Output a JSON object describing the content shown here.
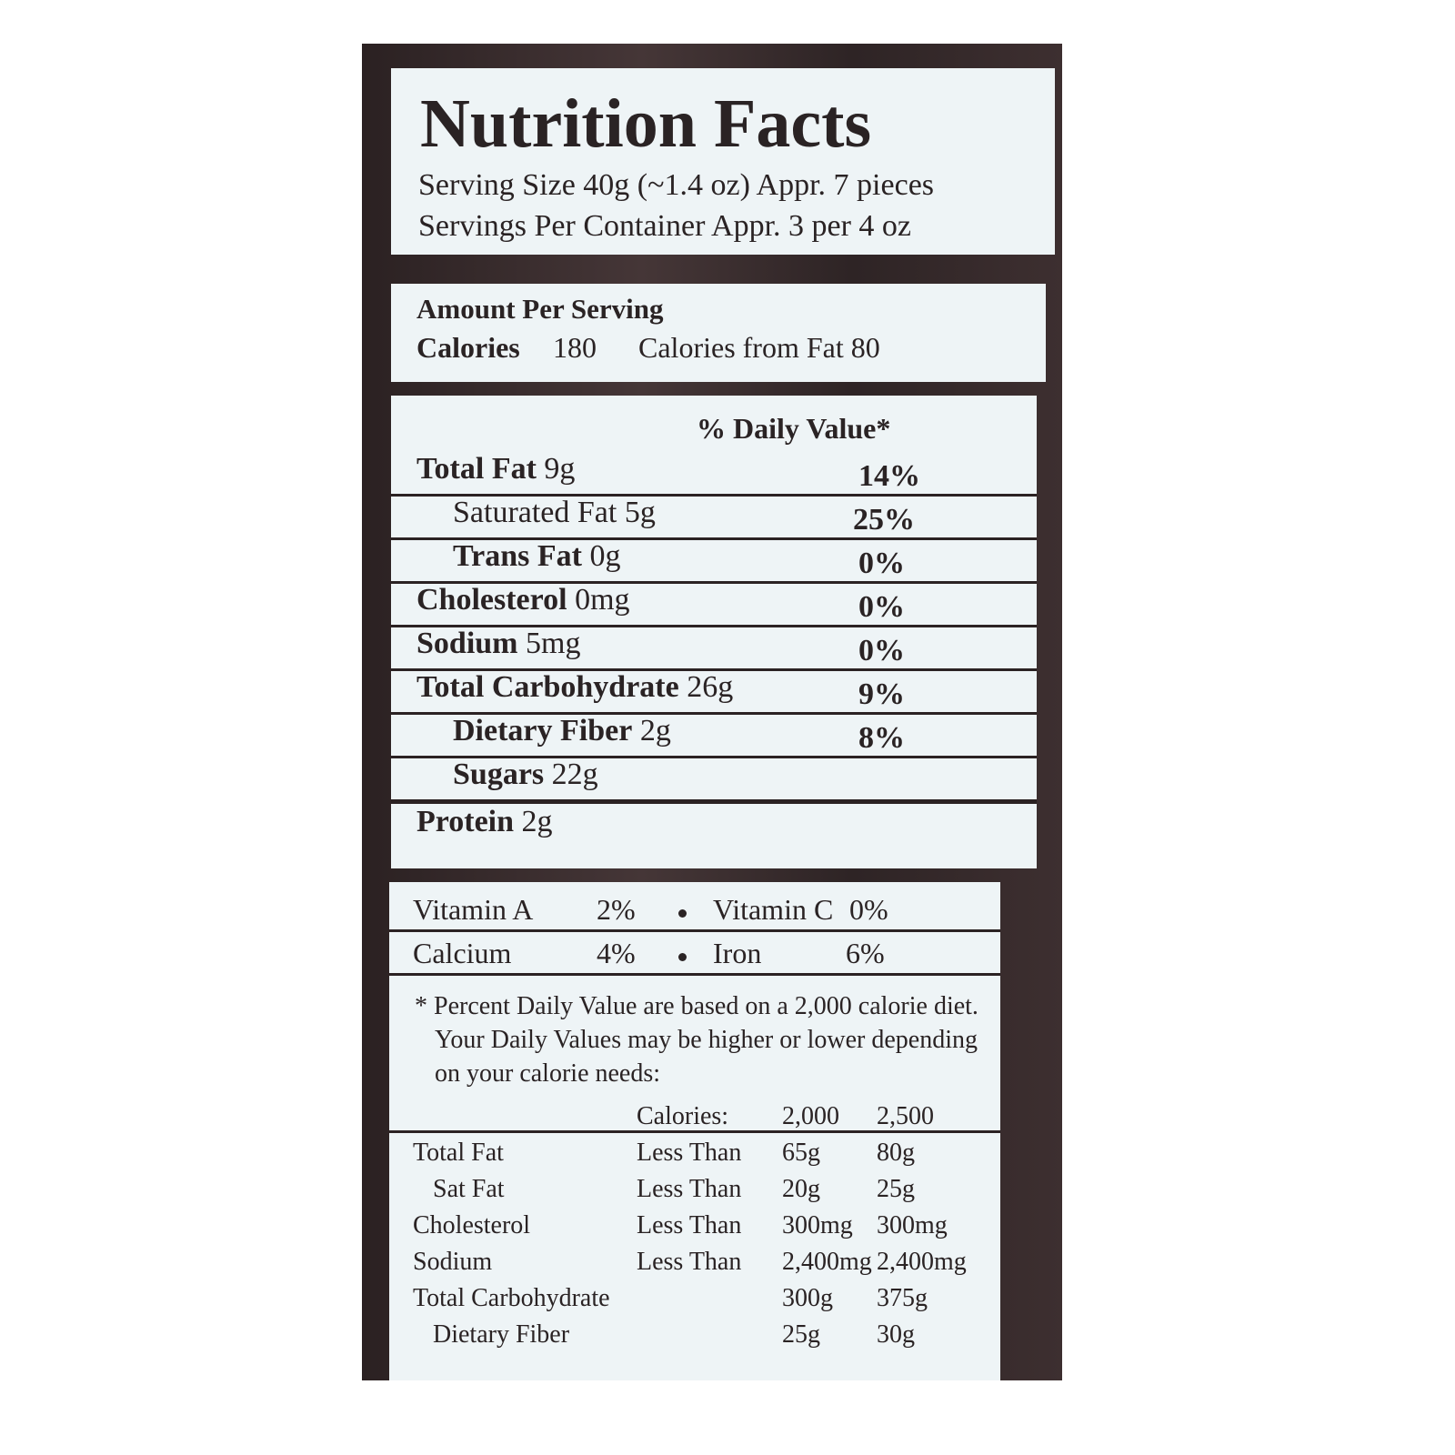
{
  "title": "Nutrition Facts",
  "serving_size": "Serving Size 40g (~1.4 oz) Appr.  7 pieces",
  "servings_per_container": "Servings Per Container Appr. 3 per 4 oz",
  "amount_per_serving": "Amount Per Serving",
  "calories": {
    "label": "Calories",
    "value": "180"
  },
  "calories_from_fat": "Calories from Fat 80",
  "daily_value_header": "% Daily Value*",
  "nutrients": [
    {
      "name": "Total Fat",
      "amount": "9g",
      "dv": "14%"
    },
    {
      "name": "Saturated Fat",
      "amount": "5g",
      "dv": "25%"
    },
    {
      "name": "Trans Fat",
      "amount": "0g",
      "dv": "0%"
    },
    {
      "name": "Cholesterol",
      "amount": "0mg",
      "dv": "0%"
    },
    {
      "name": "Sodium",
      "amount": "5mg",
      "dv": "0%"
    },
    {
      "name": "Total Carbohydrate",
      "amount": "26g",
      "dv": "9%"
    },
    {
      "name": "Dietary Fiber",
      "amount": "2g",
      "dv": "8%"
    },
    {
      "name": "Sugars",
      "amount": "22g"
    },
    {
      "name": "Protein",
      "amount": "2g"
    }
  ],
  "vitamins": [
    [
      {
        "name": "Vitamin A",
        "dv": "2%"
      },
      {
        "name": "Vitamin C",
        "dv": "0%"
      }
    ],
    [
      {
        "name": "Calcium",
        "dv": "4%"
      },
      {
        "name": "Iron",
        "dv": "6%"
      }
    ]
  ],
  "footnote": "* Percent Daily Value are based on a 2,000 calorie diet. Your Daily Values may be higher or lower depending on your calorie needs:",
  "reference": {
    "header": [
      "Calories:",
      "2,000",
      "2,500"
    ],
    "rows": [
      {
        "name": "Total Fat",
        "limit": "Less Than",
        "cal_2000": "65g",
        "cal_2500": "80g"
      },
      {
        "name": "Sat Fat",
        "limit": "Less Than",
        "cal_2000": "20g",
        "cal_2500": "25g"
      },
      {
        "name": "Cholesterol",
        "limit": "Less Than",
        "cal_2000": "300mg",
        "cal_2500": "300mg"
      },
      {
        "name": "Sodium",
        "limit": "Less Than",
        "cal_2000": "2,400mg",
        "cal_2500": "2,400mg"
      },
      {
        "name": "Total Carbohydrate",
        "cal_2000": "300g",
        "cal_2500": "375g"
      },
      {
        "name": "Dietary Fiber",
        "cal_2000": "25g",
        "cal_2500": "30g"
      }
    ]
  }
}
